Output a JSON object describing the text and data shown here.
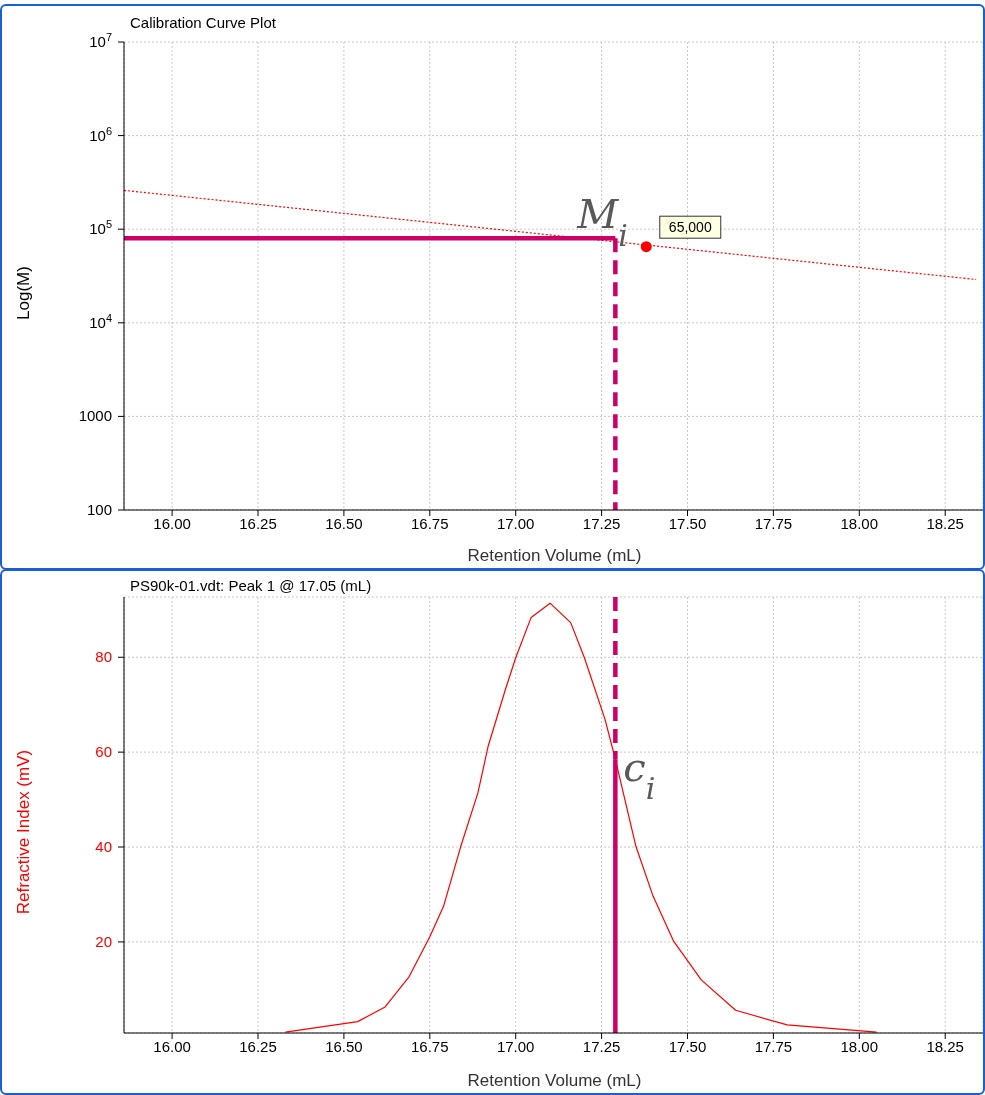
{
  "chart_data": [
    {
      "type": "line",
      "title": "Calibration Curve Plot",
      "xlabel": "Retention Volume (mL)",
      "ylabel": "Log(M)",
      "log": "y",
      "grid": true,
      "xlim": [
        15.86,
        18.36
      ],
      "xticks": [
        {
          "value": 16,
          "label": "16.00"
        },
        16.25,
        {
          "value": 16.5,
          "label": "16.50"
        },
        16.75,
        {
          "value": 17,
          "label": "17.00"
        },
        17.25,
        {
          "value": 17.5,
          "label": "17.50"
        },
        17.75,
        {
          "value": 18,
          "label": "18.00"
        },
        18.25
      ],
      "ylim": [
        100,
        10000000
      ],
      "yticks": [
        100,
        1000,
        {
          "value": 10000,
          "label": "10$^{4}$"
        },
        {
          "value": 100000,
          "label": "10$^{5}$"
        },
        {
          "value": 1000000,
          "label": "10$^{6}$"
        },
        {
          "value": 10000000,
          "label": "10$^{7}$"
        }
      ],
      "series": [
        {
          "color": "#ff0000",
          "line_style": "dotted",
          "x": [
            15.86,
            18.34
          ],
          "values": [
            260000,
            29000
          ]
        },
        {
          "type": "scatter",
          "color": "#ff0000",
          "marker": "circle",
          "x": [
            17.38
          ],
          "values": [
            65000
          ],
          "value_labels": [
            "65,000"
          ]
        },
        {
          "color": "#cc0066",
          "line_style": "solid",
          "x": [
            15.86,
            17.29
          ],
          "values": [
            80000,
            80000
          ]
        },
        {
          "color": "#cc0066",
          "line_style": "dashed",
          "x": [
            17.29,
            17.29
          ],
          "values": [
            80000,
            100
          ]
        }
      ],
      "annotations": [
        {
          "text": "M$_{i}$",
          "x": 17.29,
          "y": 80000
        }
      ]
    },
    {
      "type": "line",
      "title": "PS90k-01.vdt: Peak 1 @ 17.05 (mL)",
      "xlabel": "Retention Volume (mL)",
      "ylabel": "Refractive Index (mV)",
      "grid": true,
      "xlim": [
        15.86,
        18.36
      ],
      "xticks": [
        {
          "value": 16,
          "label": "16.00"
        },
        16.25,
        {
          "value": 16.5,
          "label": "16.50"
        },
        16.75,
        {
          "value": 17,
          "label": "17.00"
        },
        17.25,
        {
          "value": 17.5,
          "label": "17.50"
        },
        17.75,
        {
          "value": 18,
          "label": "18.00"
        },
        18.25
      ],
      "ylim": [
        0.8,
        92.7
      ],
      "yticks": [
        20,
        40,
        60,
        80
      ],
      "series": [
        {
          "color": "#ff0000",
          "line_style": "solid",
          "x": [
            16.33,
            16.54,
            16.62,
            16.69,
            16.75,
            16.79,
            16.84,
            16.89,
            16.92,
            16.97,
            17.0,
            17.045,
            17.1,
            17.16,
            17.2,
            17.26,
            17.29,
            17.35,
            17.4,
            17.46,
            17.54,
            17.64,
            17.79,
            18.05
          ],
          "values": [
            1.0,
            3.2,
            6.3,
            12.7,
            21.1,
            27.5,
            40.1,
            51.4,
            61.3,
            73.2,
            79.9,
            88.4,
            91.4,
            87.3,
            79.9,
            66.9,
            58.5,
            40.1,
            29.6,
            20.1,
            12.0,
            5.6,
            2.5,
            1.0
          ]
        },
        {
          "color": "#cc0066",
          "line_style": "dashed",
          "x": [
            17.29,
            17.29
          ],
          "values": [
            92.7,
            58.5
          ]
        },
        {
          "color": "#cc0066",
          "line_style": "solid",
          "x": [
            17.29,
            17.29
          ],
          "values": [
            58.5,
            0.8
          ]
        }
      ],
      "annotations": [
        {
          "text": "c$_{i}$",
          "x": 17.29,
          "y": 58.5
        }
      ]
    }
  ]
}
